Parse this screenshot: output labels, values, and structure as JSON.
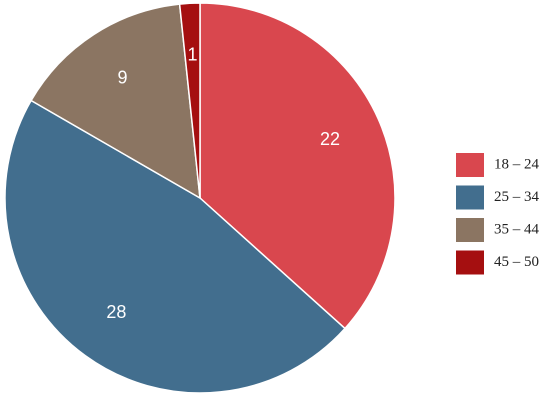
{
  "chart_data": {
    "type": "pie",
    "categories": [
      "18 – 24",
      "25 – 34",
      "35 – 44",
      "45 – 50"
    ],
    "values": [
      22,
      28,
      9,
      1
    ],
    "colors": [
      "#d9474e",
      "#426e8e",
      "#8b7562",
      "#a50f10"
    ],
    "legend": "right"
  }
}
